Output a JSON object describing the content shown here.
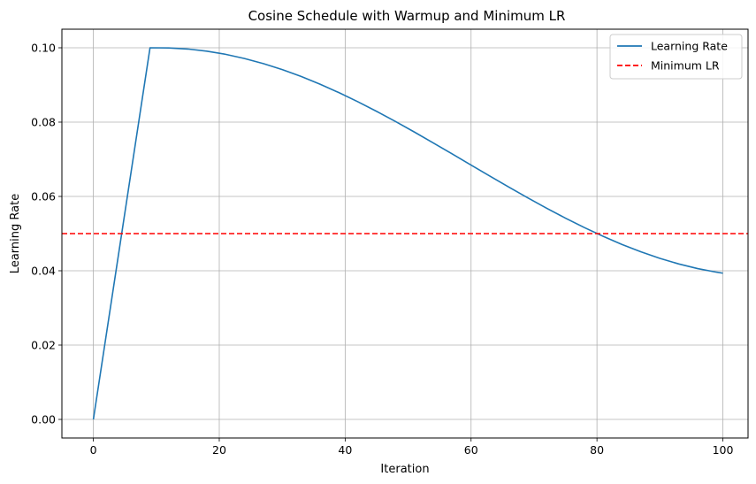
{
  "chart_data": {
    "type": "line",
    "title": "Cosine Schedule with Warmup and Minimum LR",
    "xlabel": "Iteration",
    "ylabel": "Learning Rate",
    "xlim": [
      -5,
      104
    ],
    "ylim": [
      -0.005,
      0.105
    ],
    "xticks": [
      0,
      20,
      40,
      60,
      80,
      100
    ],
    "xtick_labels": [
      "0",
      "20",
      "40",
      "60",
      "80",
      "100"
    ],
    "yticks": [
      0.0,
      0.02,
      0.04,
      0.06,
      0.08,
      0.1
    ],
    "ytick_labels": [
      "0.00",
      "0.02",
      "0.04",
      "0.06",
      "0.08",
      "0.10"
    ],
    "grid": true,
    "legend_position": "top-right",
    "series": [
      {
        "name": "Learning Rate",
        "color": "#1f77b4",
        "style": "solid",
        "x": [
          0,
          9,
          12,
          15,
          18,
          21,
          24,
          27,
          30,
          33,
          36,
          39,
          42,
          45,
          48,
          51,
          54,
          57,
          60,
          63,
          66,
          69,
          72,
          75,
          78,
          81,
          84,
          87,
          90,
          93,
          96,
          99,
          100
        ],
        "y": [
          0.0,
          0.1,
          0.09996,
          0.09967,
          0.09909,
          0.09824,
          0.09712,
          0.09575,
          0.09413,
          0.09228,
          0.09021,
          0.08794,
          0.08549,
          0.08289,
          0.08016,
          0.07732,
          0.0744,
          0.07144,
          0.06845,
          0.06547,
          0.06252,
          0.05963,
          0.05684,
          0.05416,
          0.05162,
          0.04925,
          0.04706,
          0.04508,
          0.04333,
          0.04183,
          0.04058,
          0.03962,
          0.03934
        ]
      },
      {
        "name": "Minimum LR",
        "color": "#ff0000",
        "style": "dashed",
        "y_constant": 0.05
      }
    ]
  }
}
